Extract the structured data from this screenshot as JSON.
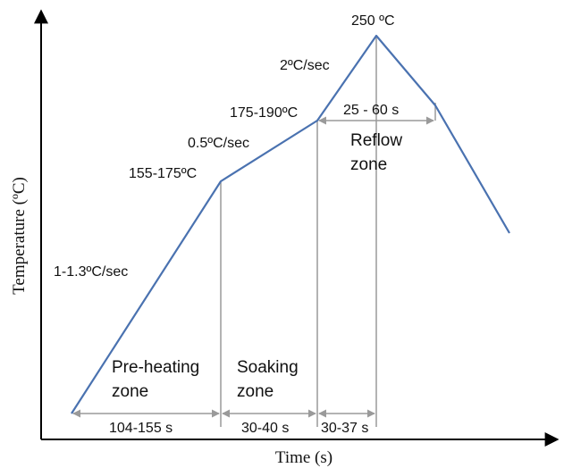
{
  "axes": {
    "x_title": "Time (s)",
    "y_title": "Temperature (ºC)"
  },
  "profile": {
    "peak_label": "250 ºC",
    "points": [
      {
        "label": "155-175ºC"
      },
      {
        "label": "175-190ºC"
      }
    ],
    "slopes": {
      "preheat": "1-1.3ºC/sec",
      "soak": "0.5ºC/sec",
      "reflow_rise": "2ºC/sec"
    }
  },
  "zones": {
    "preheat": {
      "line1": "Pre-heating",
      "line2": "zone"
    },
    "soak": {
      "line1": "Soaking",
      "line2": "zone"
    },
    "reflow": {
      "line1": "Reflow",
      "line2": "zone"
    }
  },
  "durations": {
    "preheat": "104-155 s",
    "soak": "30-40 s",
    "reflow_rise": "30-37 s",
    "above_liquidus": "25 - 60 s"
  },
  "colors": {
    "curve": "#4a72b0",
    "guides": "#9a9a9a",
    "axis": "#000000"
  }
}
